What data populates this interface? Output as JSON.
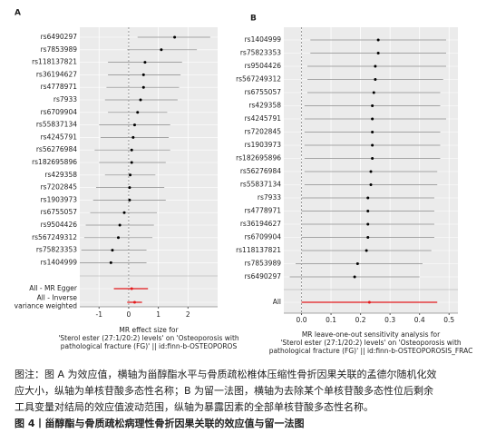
{
  "chart_data": [
    {
      "type": "forest",
      "panel": "A",
      "categories": [
        "rs6490297",
        "rs7853989",
        "rs118137821",
        "rs36194627",
        "rs4778971",
        "rs7933",
        "rs6709904",
        "rs55837134",
        "rs4245791",
        "rs56276984",
        "rs182695896",
        "rs429358",
        "rs7202845",
        "rs1903973",
        "rs6755057",
        "rs9504426",
        "rs567249312",
        "rs75823353",
        "rs1404999"
      ],
      "values": [
        1.55,
        1.1,
        0.55,
        0.5,
        0.5,
        0.4,
        0.3,
        0.2,
        0.15,
        0.1,
        0.1,
        0.05,
        0.03,
        0.03,
        -0.15,
        -0.3,
        -0.35,
        -0.55,
        -0.6
      ],
      "ci_lower": [
        0.3,
        -0.05,
        -0.7,
        -0.7,
        -0.75,
        -0.8,
        -0.7,
        -1.0,
        -0.95,
        -1.15,
        -1.0,
        -0.8,
        -1.1,
        -1.2,
        -1.3,
        -1.45,
        -1.5,
        -1.6,
        -1.65
      ],
      "ci_upper": [
        2.75,
        2.3,
        1.8,
        1.75,
        1.7,
        1.65,
        1.3,
        1.4,
        1.35,
        1.4,
        1.25,
        0.9,
        1.2,
        1.25,
        0.95,
        0.85,
        0.8,
        0.6,
        0.6
      ],
      "color": "#000000",
      "summary_categories": [
        "All - MR Egger",
        "All - Inverse variance weighted"
      ],
      "summary_values": [
        0.1,
        0.2
      ],
      "summary_lower": [
        -0.5,
        -0.05
      ],
      "summary_upper": [
        0.65,
        0.45
      ],
      "summary_color": "#e41a1c",
      "xlim": [
        -1.65,
        3.0
      ],
      "xticks": [
        -1,
        0,
        1,
        2
      ],
      "x_label": [
        "MR effect size for",
        "'Sterol ester (27:1/20:2) levels' on 'Osteoporosis with",
        "pathological fracture (FG)' || id:finn-b-OSTEOPOROS"
      ]
    },
    {
      "type": "forest",
      "panel": "B",
      "categories": [
        "rs1404999",
        "rs75823353",
        "rs9504426",
        "rs567249312",
        "rs6755057",
        "rs429358",
        "rs4245791",
        "rs7202845",
        "rs1903973",
        "rs182695896",
        "rs56276984",
        "rs55837134",
        "rs7933",
        "rs4778971",
        "rs36194627",
        "rs6709904",
        "rs118137821",
        "rs7853989",
        "rs6490297"
      ],
      "values": [
        0.26,
        0.26,
        0.25,
        0.25,
        0.245,
        0.24,
        0.24,
        0.24,
        0.24,
        0.24,
        0.235,
        0.235,
        0.225,
        0.225,
        0.225,
        0.225,
        0.22,
        0.19,
        0.18
      ],
      "ci_lower": [
        0.03,
        0.03,
        0.02,
        0.02,
        0.02,
        0.01,
        0.01,
        0.01,
        0.01,
        0.01,
        0.01,
        0.01,
        0.0,
        0.0,
        0.0,
        0.0,
        0.0,
        -0.02,
        -0.04
      ],
      "ci_upper": [
        0.49,
        0.49,
        0.49,
        0.48,
        0.47,
        0.47,
        0.49,
        0.47,
        0.47,
        0.47,
        0.46,
        0.46,
        0.45,
        0.45,
        0.45,
        0.45,
        0.44,
        0.41,
        0.4
      ],
      "color": "#000000",
      "summary_categories": [
        "All"
      ],
      "summary_values": [
        0.23
      ],
      "summary_lower": [
        0.0
      ],
      "summary_upper": [
        0.46
      ],
      "summary_color": "#e41a1c",
      "xlim": [
        -0.06,
        0.53
      ],
      "xticks": [
        {
          "value": 0,
          "label": "0.0"
        },
        0.1,
        0.2,
        0.3,
        0.4,
        0.5
      ],
      "x_label": [
        "MR leave-one-out sensitivity analysis for",
        "'Sterol ester (27:1/20:2) levels' on 'Osteoporosis with",
        "pathological fracture (FG)' || id:finn-b-OSTEOPOROSIS_FRAC"
      ]
    }
  ],
  "caption": {
    "lines": [
      "图注：图 A 为效应值，横轴为甾醇酯水平与骨质疏松椎体压缩性骨折因果关联的孟德尔随机化效",
      "应大小，纵轴为单核苷酸多态性名称；B 为留一法图，横轴为去除某个单核苷酸多态性位后剩余",
      "工具变量对结局的效应值波动范围，纵轴为暴露因素的全部单核苷酸多态性名称。"
    ],
    "figure_title": "图 4丨甾醇酯与骨质疏松病理性骨折因果关联的效应值与留一法图"
  }
}
